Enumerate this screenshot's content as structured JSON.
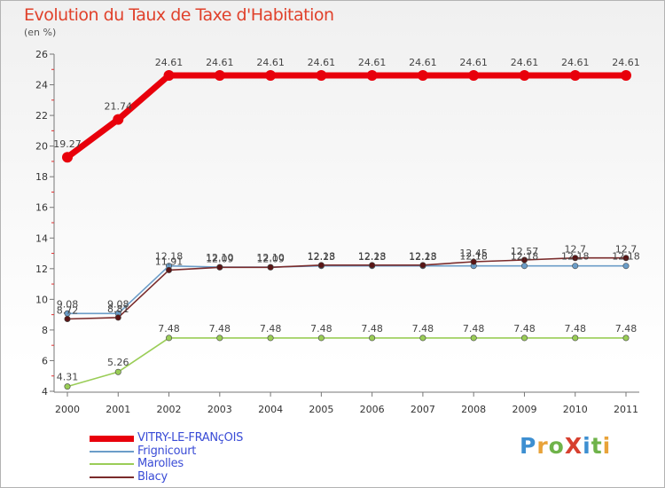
{
  "title": "Evolution du Taux de Taxe d'Habitation",
  "subtitle": "(en %)",
  "logo_text": "ProXiti",
  "logo_colors": [
    "#3d8fd1",
    "#e8a33a",
    "#6fb34a",
    "#d7402f",
    "#3d8fd1",
    "#6fb34a",
    "#e8a33a"
  ],
  "chart_data": {
    "type": "line",
    "x": [
      "2000",
      "2001",
      "2002",
      "2003",
      "2004",
      "2005",
      "2006",
      "2007",
      "2008",
      "2009",
      "2010",
      "2011"
    ],
    "ylim": [
      4,
      26
    ],
    "yticks": [
      "4",
      "6",
      "8",
      "10",
      "12",
      "14",
      "16",
      "18",
      "20",
      "22",
      "24",
      "26"
    ],
    "grid": false,
    "legend_position": "bottom-left",
    "series": [
      {
        "name": "VITRY-LE-FRANçOIS",
        "color": "#e8000b",
        "values": [
          19.27,
          21.74,
          24.61,
          24.61,
          24.61,
          24.61,
          24.61,
          24.61,
          24.61,
          24.61,
          24.61,
          24.61
        ],
        "labels": [
          "19.27",
          "21.74",
          "24.61",
          "24.61",
          "24.61",
          "24.61",
          "24.61",
          "24.61",
          "24.61",
          "24.61",
          "24.61",
          "24.61"
        ]
      },
      {
        "name": "Frignicourt",
        "color": "#6b9dc8",
        "values": [
          9.08,
          9.08,
          12.18,
          12.1,
          12.1,
          12.18,
          12.18,
          12.18,
          12.18,
          12.18,
          12.18,
          12.18
        ],
        "labels": [
          "9.08",
          "9.08",
          "12.18",
          "12.10",
          "12.10",
          "12.18",
          "12.18",
          "12.18",
          "12.18",
          "12.18",
          "12.18",
          "12.18"
        ]
      },
      {
        "name": "Marolles",
        "color": "#9acd57",
        "values": [
          4.31,
          5.26,
          7.48,
          7.48,
          7.48,
          7.48,
          7.48,
          7.48,
          7.48,
          7.48,
          7.48,
          7.48
        ],
        "labels": [
          "4.31",
          "5.26",
          "7.48",
          "7.48",
          "7.48",
          "7.48",
          "7.48",
          "7.48",
          "7.48",
          "7.48",
          "7.48",
          "7.48"
        ]
      },
      {
        "name": "Blacy",
        "color": "#7a2b2b",
        "values": [
          8.72,
          8.81,
          11.91,
          12.09,
          12.09,
          12.23,
          12.23,
          12.23,
          12.45,
          12.57,
          12.7,
          12.7
        ],
        "labels": [
          "8.72",
          "8.81",
          "11.91",
          "12.09",
          "12.09",
          "12.23",
          "12.23",
          "12.23",
          "12.45",
          "12.57",
          "12.7",
          "12.7"
        ]
      }
    ]
  }
}
